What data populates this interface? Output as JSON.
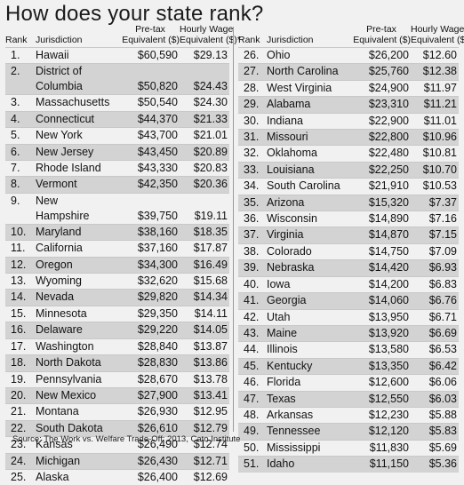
{
  "title": "How does your state rank?",
  "headers": {
    "rank": "Rank",
    "jurisdiction": "Jurisdiction",
    "pretax_line1": "Pre-tax",
    "pretax_line2": "Equivalent ($)",
    "hourly_line1": "Hourly Wage",
    "hourly_line2": "Equivalent ($)*"
  },
  "left_rows": [
    {
      "rank": "1.",
      "name": "Hawaii",
      "pretax": "$60,590",
      "hourly": "$29.13"
    },
    {
      "rank": "2.",
      "name": "District of",
      "name2": "Columbia",
      "pretax": "$50,820",
      "hourly": "$24.43"
    },
    {
      "rank": "3.",
      "name": "Massachusetts",
      "pretax": "$50,540",
      "hourly": "$24.30"
    },
    {
      "rank": "4.",
      "name": "Connecticut",
      "pretax": "$44,370",
      "hourly": "$21.33"
    },
    {
      "rank": "5.",
      "name": "New York",
      "pretax": "$43,700",
      "hourly": "$21.01"
    },
    {
      "rank": "6.",
      "name": "New Jersey",
      "pretax": "$43,450",
      "hourly": "$20.89"
    },
    {
      "rank": "7.",
      "name": "Rhode Island",
      "pretax": "$43,330",
      "hourly": "$20.83"
    },
    {
      "rank": "8.",
      "name": "Vermont",
      "pretax": "$42,350",
      "hourly": "$20.36"
    },
    {
      "rank": "9.",
      "name": "New",
      "name2": "Hampshire",
      "pretax": "$39,750",
      "hourly": "$19.11"
    },
    {
      "rank": "10.",
      "name": "Maryland",
      "pretax": "$38,160",
      "hourly": "$18.35"
    },
    {
      "rank": "11.",
      "name": "California",
      "pretax": "$37,160",
      "hourly": "$17.87"
    },
    {
      "rank": "12.",
      "name": "Oregon",
      "pretax": "$34,300",
      "hourly": "$16.49"
    },
    {
      "rank": "13.",
      "name": "Wyoming",
      "pretax": "$32,620",
      "hourly": "$15.68"
    },
    {
      "rank": "14.",
      "name": "Nevada",
      "pretax": "$29,820",
      "hourly": "$14.34"
    },
    {
      "rank": "15.",
      "name": "Minnesota",
      "pretax": "$29,350",
      "hourly": "$14.11"
    },
    {
      "rank": "16.",
      "name": "Delaware",
      "pretax": "$29,220",
      "hourly": "$14.05"
    },
    {
      "rank": "17.",
      "name": "Washington",
      "pretax": "$28,840",
      "hourly": "$13.87"
    },
    {
      "rank": "18.",
      "name": "North Dakota",
      "pretax": "$28,830",
      "hourly": "$13.86"
    },
    {
      "rank": "19.",
      "name": "Pennsylvania",
      "pretax": "$28,670",
      "hourly": "$13.78"
    },
    {
      "rank": "20.",
      "name": "New Mexico",
      "pretax": "$27,900",
      "hourly": "$13.41"
    },
    {
      "rank": "21.",
      "name": "Montana",
      "pretax": "$26,930",
      "hourly": "$12.95"
    },
    {
      "rank": "22.",
      "name": "South Dakota",
      "pretax": "$26,610",
      "hourly": "$12.79"
    },
    {
      "rank": "23.",
      "name": "Kansas",
      "pretax": "$26,490",
      "hourly": "$12.74"
    },
    {
      "rank": "24.",
      "name": "Michigan",
      "pretax": "$26,430",
      "hourly": "$12.71"
    },
    {
      "rank": "25.",
      "name": "Alaska",
      "pretax": "$26,400",
      "hourly": "$12.69"
    }
  ],
  "right_rows": [
    {
      "rank": "26.",
      "name": "Ohio",
      "pretax": "$26,200",
      "hourly": "$12.60"
    },
    {
      "rank": "27.",
      "name": "North Carolina",
      "pretax": "$25,760",
      "hourly": "$12.38"
    },
    {
      "rank": "28.",
      "name": "West Virginia",
      "pretax": "$24,900",
      "hourly": "$11.97"
    },
    {
      "rank": "29.",
      "name": "Alabama",
      "pretax": "$23,310",
      "hourly": "$11.21"
    },
    {
      "rank": "30.",
      "name": "Indiana",
      "pretax": "$22,900",
      "hourly": "$11.01"
    },
    {
      "rank": "31.",
      "name": "Missouri",
      "pretax": "$22,800",
      "hourly": "$10.96"
    },
    {
      "rank": "32.",
      "name": "Oklahoma",
      "pretax": "$22,480",
      "hourly": "$10.81"
    },
    {
      "rank": "33.",
      "name": "Louisiana",
      "pretax": "$22,250",
      "hourly": "$10.70"
    },
    {
      "rank": "34.",
      "name": "South Carolina",
      "pretax": "$21,910",
      "hourly": "$10.53"
    },
    {
      "rank": "35.",
      "name": "Arizona",
      "pretax": "$15,320",
      "hourly": "$7.37"
    },
    {
      "rank": "36.",
      "name": "Wisconsin",
      "pretax": "$14,890",
      "hourly": "$7.16"
    },
    {
      "rank": "37.",
      "name": "Virginia",
      "pretax": "$14,870",
      "hourly": "$7.15"
    },
    {
      "rank": "38.",
      "name": "Colorado",
      "pretax": "$14,750",
      "hourly": "$7.09"
    },
    {
      "rank": "39.",
      "name": "Nebraska",
      "pretax": "$14,420",
      "hourly": "$6.93"
    },
    {
      "rank": "40.",
      "name": "Iowa",
      "pretax": "$14,200",
      "hourly": "$6.83"
    },
    {
      "rank": "41.",
      "name": "Georgia",
      "pretax": "$14,060",
      "hourly": "$6.76"
    },
    {
      "rank": "42.",
      "name": "Utah",
      "pretax": "$13,950",
      "hourly": "$6.71"
    },
    {
      "rank": "43.",
      "name": "Maine",
      "pretax": "$13,920",
      "hourly": "$6.69"
    },
    {
      "rank": "44.",
      "name": "Illinois",
      "pretax": "$13,580",
      "hourly": "$6.53"
    },
    {
      "rank": "45.",
      "name": "Kentucky",
      "pretax": "$13,350",
      "hourly": "$6.42"
    },
    {
      "rank": "46.",
      "name": "Florida",
      "pretax": "$12,600",
      "hourly": "$6.06"
    },
    {
      "rank": "47.",
      "name": "Texas",
      "pretax": "$12,550",
      "hourly": "$6.03"
    },
    {
      "rank": "48.",
      "name": "Arkansas",
      "pretax": "$12,230",
      "hourly": "$5.88"
    },
    {
      "rank": "49.",
      "name": "Tennessee",
      "pretax": "$12,120",
      "hourly": "$5.83"
    },
    {
      "rank": "50.",
      "name": "Mississippi",
      "pretax": "$11,830",
      "hourly": "$5.69"
    },
    {
      "rank": "51.",
      "name": "Idaho",
      "pretax": "$11,150",
      "hourly": "$5.36"
    }
  ],
  "source": "Source: The Work vs. Welfare Trade-Off: 2013, Cato Institute",
  "colors": {
    "shade": "#d3d3d3",
    "background": "#f1f1f1",
    "divider": "#9a9a9a"
  }
}
